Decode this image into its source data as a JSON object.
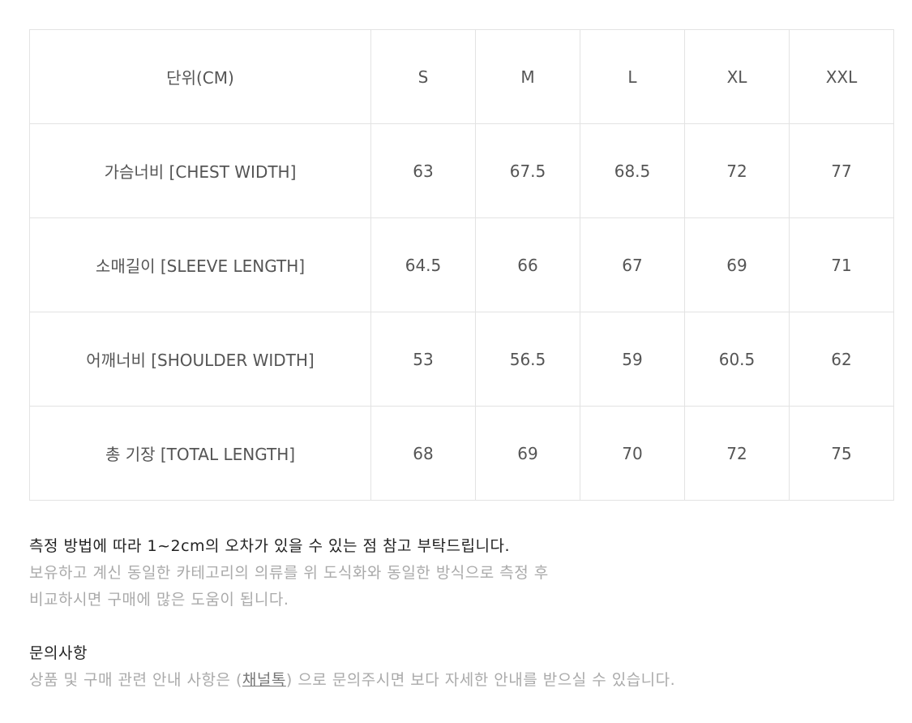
{
  "size_table": {
    "header": {
      "label": "단위(CM)",
      "sizes": [
        "S",
        "M",
        "L",
        "XL",
        "XXL"
      ]
    },
    "rows": [
      {
        "label": "가슴너비 [CHEST WIDTH]",
        "values": [
          "63",
          "67.5",
          "68.5",
          "72",
          "77"
        ]
      },
      {
        "label": "소매길이 [SLEEVE LENGTH]",
        "values": [
          "64.5",
          "66",
          "67",
          "69",
          "71"
        ]
      },
      {
        "label": "어깨너비 [SHOULDER WIDTH]",
        "values": [
          "53",
          "56.5",
          "59",
          "60.5",
          "62"
        ]
      },
      {
        "label": "총 기장 [TOTAL LENGTH]",
        "values": [
          "68",
          "69",
          "70",
          "72",
          "75"
        ]
      }
    ]
  },
  "notes": {
    "measurement_note": "측정 방법에 따라 1~2cm의 오차가 있을 수 있는 점 참고 부탁드립니다.",
    "compare_line1": "보유하고 계신 동일한 카테고리의 의류를 위 도식화와 동일한 방식으로 측정 후",
    "compare_line2": "비교하시면 구매에 많은 도움이 됩니다.",
    "inquiry_title": "문의사항",
    "inquiry_before": "상품 및 구매 관련 안내 사항은 (",
    "inquiry_link": "채널톡",
    "inquiry_after": ") 으로 문의주시면 보다 자세한 안내를 받으실 수 있습니다."
  }
}
